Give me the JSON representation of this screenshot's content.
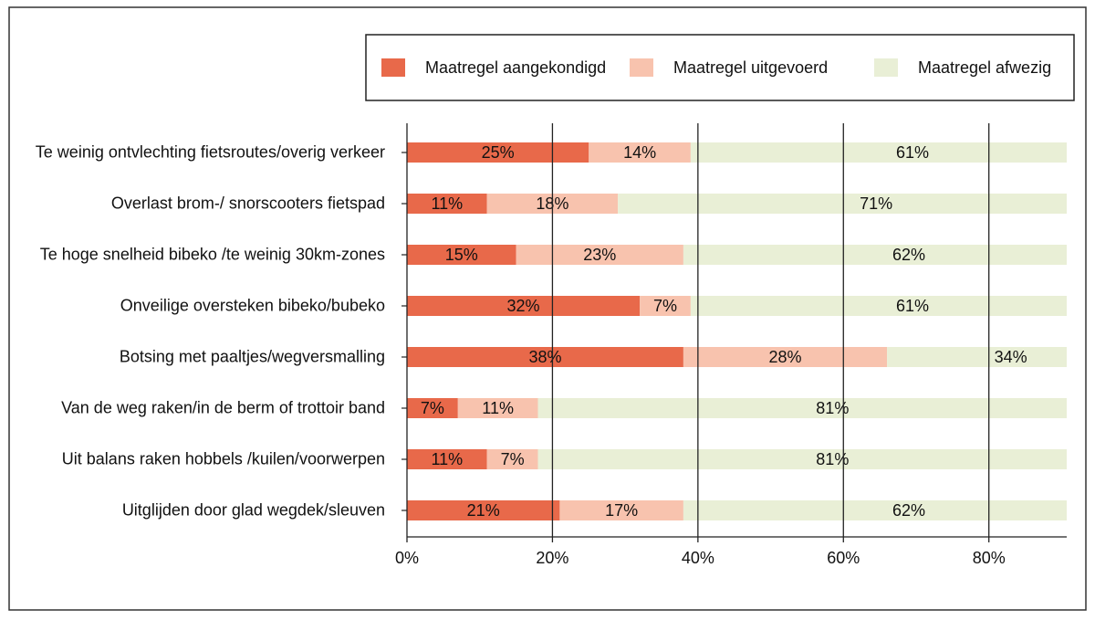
{
  "chart_data": {
    "type": "stacked-bar-horizontal",
    "categories": [
      "Te weinig ontvlechting fietsroutes/overig verkeer",
      "Overlast brom-/ snorscooters fietspad",
      "Te hoge snelheid bibeko /te weinig 30km-zones",
      "Onveilige oversteken bibeko/bubeko",
      "Botsing met paaltjes/wegversmalling",
      "Van de weg raken/in de berm of trottoir band",
      "Uit balans raken hobbels /kuilen/voorwerpen",
      "Uitglijden door glad wegdek/sleuven"
    ],
    "series": [
      {
        "name": "Maatregel aangekondigd",
        "color": "#e8694a",
        "values": [
          25,
          11,
          15,
          32,
          38,
          7,
          11,
          21
        ],
        "value_labels": [
          "25%",
          "11%",
          "15%",
          "32%",
          "38%",
          "7%",
          "11%",
          "21%"
        ]
      },
      {
        "name": "Maatregel uitgevoerd",
        "color": "#f8c3ae",
        "values": [
          14,
          18,
          23,
          7,
          28,
          11,
          7,
          17
        ],
        "value_labels": [
          "14%",
          "18%",
          "23%",
          "7%",
          "28%",
          "11%",
          "7%",
          "17%"
        ]
      },
      {
        "name": "Maatregel afwezig",
        "color": "#e9efd6",
        "values": [
          61,
          71,
          62,
          61,
          34,
          81,
          81,
          62
        ],
        "value_labels": [
          "61%",
          "71%",
          "62%",
          "61%",
          "34%",
          "81%",
          "81%",
          "62%"
        ]
      }
    ],
    "xlim": [
      0,
      90.7
    ],
    "xticks": [
      {
        "value": 0,
        "label": "0%"
      },
      {
        "value": 20,
        "label": "20%"
      },
      {
        "value": 40,
        "label": "40%"
      },
      {
        "value": 60,
        "label": "60%"
      },
      {
        "value": 80,
        "label": "80%"
      }
    ],
    "grid": true,
    "legend": "top-right"
  }
}
